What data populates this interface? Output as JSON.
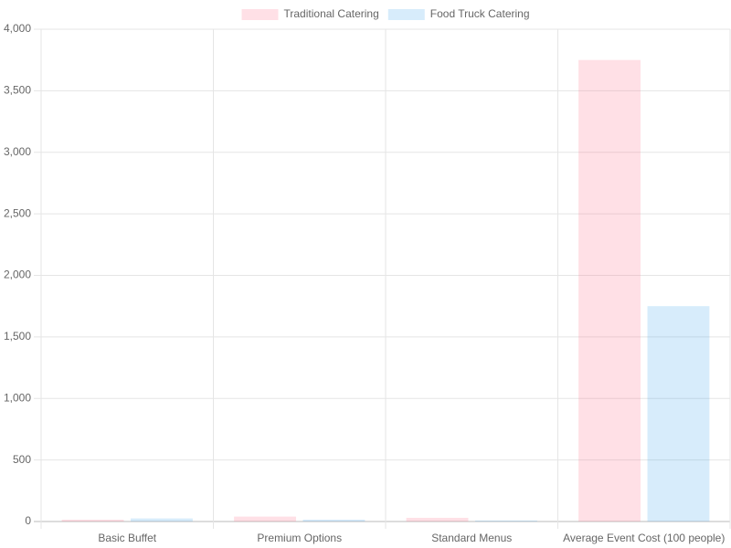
{
  "chart_data": {
    "type": "bar",
    "categories": [
      "Basic Buffet",
      "Premium Options",
      "Standard Menus",
      "Average Event Cost (100 people)"
    ],
    "series": [
      {
        "name": "Traditional Catering",
        "color": "rgba(255, 99, 132, 0.2)",
        "values": [
          15,
          40,
          30,
          3750
        ]
      },
      {
        "name": "Food Truck Catering",
        "color": "rgba(54, 162, 235, 0.2)",
        "values": [
          25,
          15,
          8,
          1750
        ]
      }
    ],
    "ylim": [
      0,
      4000
    ],
    "yticks": [
      0,
      500,
      {
        "value": 1000,
        "label": "1,000"
      },
      {
        "value": 1500,
        "label": "1,500"
      },
      {
        "value": 2000,
        "label": "2,000"
      },
      {
        "value": 2500,
        "label": "2,500"
      },
      {
        "value": 3000,
        "label": "3,000"
      },
      {
        "value": 3500,
        "label": "3,500"
      },
      {
        "value": 4000,
        "label": "4,000"
      }
    ],
    "grid": true,
    "legend": "top"
  }
}
